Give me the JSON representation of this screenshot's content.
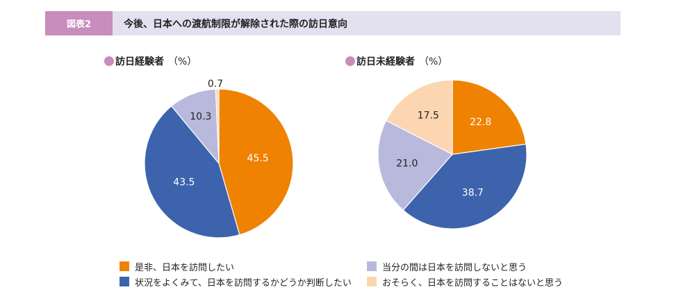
{
  "header": {
    "fig_label": "図表2",
    "title": "今後、日本への渡航制限が解除された際の訪日意向"
  },
  "colors": {
    "orange": "#ef8200",
    "blue": "#3d63ad",
    "lavender": "#b8b9dd",
    "peach": "#fbd6b0",
    "accent": "#c88dbc",
    "header_bg": "#e3e0ef"
  },
  "legend": [
    {
      "label": "是非、日本を訪問したい",
      "color": "#ef8200"
    },
    {
      "label": "状況をよくみて、日本を訪問するかどうか判断したい",
      "color": "#3d63ad"
    },
    {
      "label": "当分の間は日本を訪問しないと思う",
      "color": "#b8b9dd"
    },
    {
      "label": "おそらく、日本を訪問することはないと思う",
      "color": "#fbd6b0"
    }
  ],
  "chart_data": [
    {
      "type": "pie",
      "title": "訪日経験者",
      "unit": "（%）",
      "categories": [
        "是非、日本を訪問したい",
        "状況をよくみて、日本を訪問するかどうか判断したい",
        "当分の間は日本を訪問しないと思う",
        "おそらく、日本を訪問することはないと思う"
      ],
      "values": [
        45.5,
        43.5,
        10.3,
        0.7
      ],
      "labels": [
        "45.5",
        "43.5",
        "10.3",
        "0.7"
      ]
    },
    {
      "type": "pie",
      "title": "訪日未経験者",
      "unit": "（%）",
      "categories": [
        "是非、日本を訪問したい",
        "状況をよくみて、日本を訪問するかどうか判断したい",
        "当分の間は日本を訪問しないと思う",
        "おそらく、日本を訪問することはないと思う"
      ],
      "values": [
        22.8,
        38.7,
        21.0,
        17.5
      ],
      "labels": [
        "22.8",
        "38.7",
        "21.0",
        "17.5"
      ]
    }
  ]
}
